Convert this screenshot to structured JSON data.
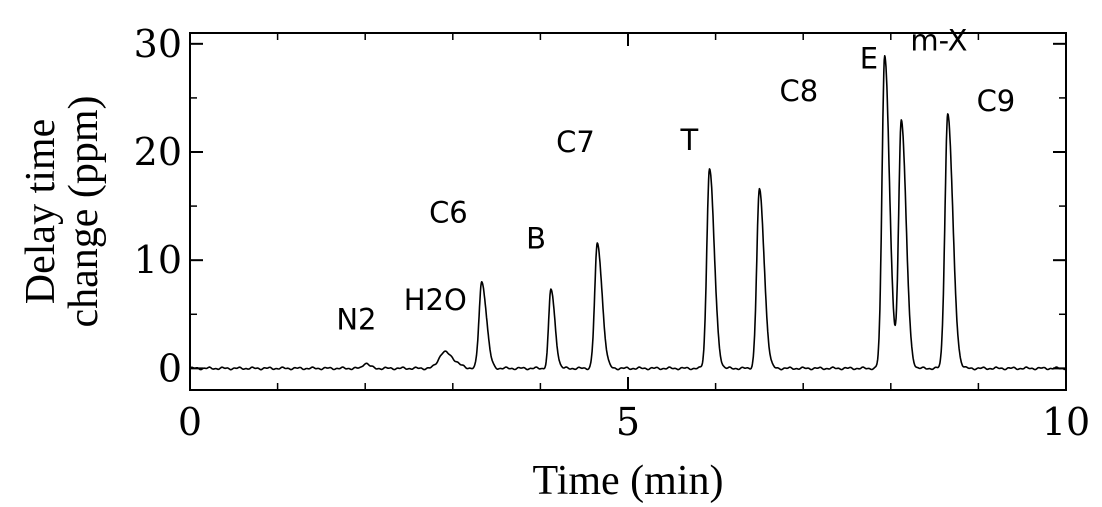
{
  "chart_data": {
    "type": "line",
    "xlabel": "Time (min)",
    "ylabel_lines": [
      "Delay time",
      "change (ppm)"
    ],
    "xlim": [
      0,
      10
    ],
    "ylim": [
      -2,
      31
    ],
    "xticks": [
      0,
      5,
      10
    ],
    "xtick_labels": [
      "0",
      "5",
      "10"
    ],
    "xminor": [
      1,
      2,
      3,
      4,
      6,
      7,
      8,
      9
    ],
    "yticks": [
      0,
      10,
      20,
      30
    ],
    "ytick_labels": [
      "0",
      "10",
      "20",
      "30"
    ],
    "yminor": [
      5,
      15,
      25
    ],
    "grid": false,
    "series": [
      {
        "color": "#000000",
        "baseline": 0,
        "peaks": [
          {
            "t": 2.0,
            "h": 0.5,
            "w": 0.025
          },
          {
            "t": 2.9,
            "h": 1.5,
            "w": 0.06
          },
          {
            "t": 3.33,
            "h": 8.0,
            "w": 0.03
          },
          {
            "t": 4.12,
            "h": 7.3,
            "w": 0.025
          },
          {
            "t": 4.65,
            "h": 11.5,
            "w": 0.03
          },
          {
            "t": 5.93,
            "h": 18.5,
            "w": 0.03
          },
          {
            "t": 6.5,
            "h": 16.5,
            "w": 0.03
          },
          {
            "t": 7.93,
            "h": 29.0,
            "w": 0.03
          },
          {
            "t": 8.12,
            "h": 23.0,
            "w": 0.03
          },
          {
            "t": 8.65,
            "h": 23.5,
            "w": 0.032
          }
        ]
      }
    ],
    "annotations": [
      {
        "text": "N2",
        "x": 1.9,
        "y": 3.6
      },
      {
        "text": "H2O",
        "x": 2.8,
        "y": 5.4
      },
      {
        "text": "C6",
        "x": 2.95,
        "y": 13.5
      },
      {
        "text": "B",
        "x": 3.95,
        "y": 11.1
      },
      {
        "text": "C7",
        "x": 4.4,
        "y": 20.0
      },
      {
        "text": "T",
        "x": 5.7,
        "y": 20.2
      },
      {
        "text": "C8",
        "x": 6.95,
        "y": 24.7
      },
      {
        "text": "E",
        "x": 7.75,
        "y": 27.7
      },
      {
        "text": "m-X",
        "x": 8.55,
        "y": 29.4
      },
      {
        "text": "C9",
        "x": 9.2,
        "y": 23.8
      }
    ]
  }
}
